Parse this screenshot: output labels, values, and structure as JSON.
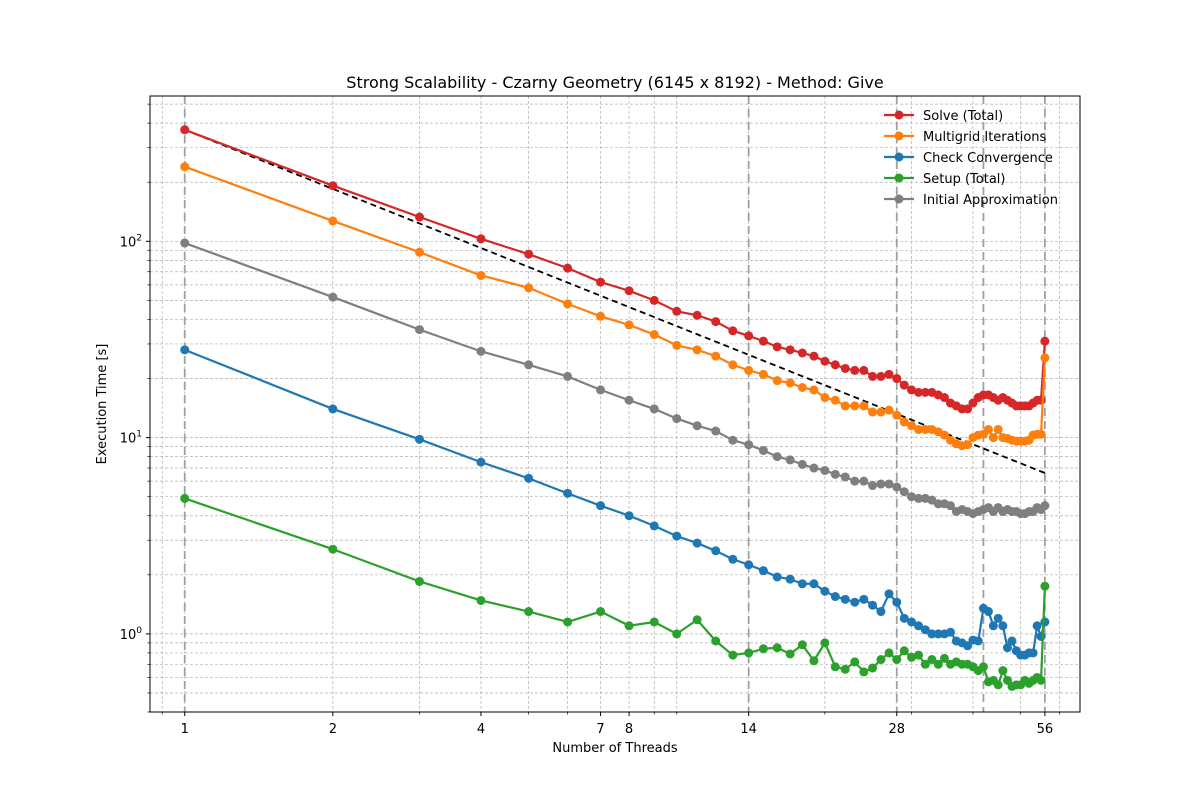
{
  "chart_data": {
    "type": "line",
    "title": "Strong Scalability - Czarny Geometry (6145 x 8192) - Method: Give",
    "xlabel": "Number of Threads",
    "ylabel": "Execution Time [s]",
    "x_scale": "log",
    "y_scale": "log",
    "xlim": [
      0.85,
      66
    ],
    "ylim": [
      0.4,
      550
    ],
    "x_ticks": [
      1,
      2,
      4,
      7,
      8,
      14,
      28,
      56
    ],
    "x_tick_labels": [
      "1",
      "2",
      "4",
      "7",
      "8",
      "14",
      "28",
      "56"
    ],
    "y_ticks": [
      1,
      10,
      100
    ],
    "y_tick_labels": [
      "10^0",
      "10^1",
      "10^2"
    ],
    "vertical_reference_lines": [
      1,
      14,
      28,
      42,
      56
    ],
    "grid": true,
    "legend_position": "top-right",
    "x": [
      1,
      2,
      3,
      4,
      5,
      6,
      7,
      8,
      9,
      10,
      11,
      12,
      13,
      14,
      15,
      16,
      17,
      18,
      19,
      20,
      21,
      22,
      23,
      24,
      25,
      26,
      27,
      28,
      29,
      30,
      31,
      32,
      33,
      34,
      35,
      36,
      37,
      38,
      39,
      40,
      41,
      42,
      43,
      44,
      45,
      46,
      47,
      48,
      49,
      50,
      51,
      52,
      53,
      54,
      55,
      56
    ],
    "series": [
      {
        "name": "Solve (Total)",
        "color": "#d62728",
        "values": [
          370,
          192,
          133,
          103,
          86,
          73,
          62,
          56,
          50,
          44,
          42,
          39,
          35,
          33,
          31,
          29,
          28,
          27,
          26,
          24.5,
          23.5,
          22.5,
          22,
          22,
          20.5,
          20.5,
          21,
          20,
          18.5,
          17.5,
          17,
          17,
          17,
          16.5,
          16,
          15,
          14.5,
          14,
          14,
          15,
          16,
          16.5,
          16.5,
          16,
          15.5,
          16,
          15.5,
          15,
          14.5,
          14.5,
          14.5,
          14.5,
          15,
          15.5,
          15.5,
          31
        ]
      },
      {
        "name": "Multigrid Iterations",
        "color": "#ff7f0e",
        "values": [
          240,
          127,
          88,
          67,
          58,
          48,
          41.5,
          37.5,
          33.5,
          29.5,
          28,
          26,
          23.5,
          22,
          21,
          19.5,
          19,
          18,
          17.5,
          16,
          15.5,
          14.5,
          14.5,
          14.5,
          13.5,
          13.5,
          13.8,
          13,
          12,
          11.5,
          11,
          11,
          11,
          10.7,
          10.3,
          9.7,
          9.3,
          9.1,
          9.2,
          10,
          10.3,
          10.4,
          11,
          10,
          11,
          10,
          9.9,
          9.7,
          9.6,
          9.6,
          9.6,
          9.7,
          10.3,
          10.4,
          10.4,
          25.5
        ]
      },
      {
        "name": "Check Convergence",
        "color": "#1f77b4",
        "values": [
          28,
          14,
          9.8,
          7.5,
          6.2,
          5.2,
          4.5,
          4.0,
          3.55,
          3.15,
          2.9,
          2.65,
          2.4,
          2.25,
          2.1,
          1.95,
          1.9,
          1.8,
          1.8,
          1.65,
          1.55,
          1.5,
          1.45,
          1.5,
          1.4,
          1.3,
          1.6,
          1.45,
          1.2,
          1.15,
          1.1,
          1.05,
          1.0,
          1.0,
          1.0,
          1.02,
          0.92,
          0.9,
          0.87,
          0.93,
          0.92,
          1.35,
          1.3,
          1.1,
          1.2,
          1.1,
          0.85,
          0.92,
          0.82,
          0.78,
          0.78,
          0.8,
          0.8,
          1.1,
          0.97,
          1.15
        ]
      },
      {
        "name": "Setup (Total)",
        "color": "#2ca02c",
        "values": [
          4.9,
          2.7,
          1.85,
          1.48,
          1.3,
          1.15,
          1.3,
          1.1,
          1.15,
          1.0,
          1.18,
          0.92,
          0.78,
          0.8,
          0.84,
          0.85,
          0.79,
          0.88,
          0.73,
          0.9,
          0.68,
          0.66,
          0.72,
          0.64,
          0.67,
          0.74,
          0.8,
          0.74,
          0.82,
          0.76,
          0.78,
          0.7,
          0.74,
          0.7,
          0.75,
          0.7,
          0.72,
          0.7,
          0.7,
          0.68,
          0.65,
          0.68,
          0.57,
          0.58,
          0.55,
          0.65,
          0.58,
          0.54,
          0.55,
          0.55,
          0.58,
          0.56,
          0.58,
          0.6,
          0.58,
          1.75
        ]
      },
      {
        "name": "Initial Approximation",
        "color": "#7f7f7f",
        "values": [
          98,
          52,
          35.5,
          27.5,
          23.5,
          20.5,
          17.5,
          15.5,
          14,
          12.5,
          11.5,
          10.8,
          9.7,
          9.2,
          8.6,
          8.0,
          7.7,
          7.3,
          7.0,
          6.8,
          6.5,
          6.3,
          6.0,
          6.0,
          5.7,
          5.8,
          5.8,
          5.6,
          5.3,
          5.0,
          4.9,
          4.9,
          4.8,
          4.6,
          4.6,
          4.5,
          4.2,
          4.3,
          4.2,
          4.1,
          4.2,
          4.3,
          4.4,
          4.2,
          4.4,
          4.2,
          4.3,
          4.2,
          4.2,
          4.1,
          4.1,
          4.2,
          4.2,
          4.4,
          4.3,
          4.5
        ]
      }
    ],
    "reference_line": {
      "style": "dashed",
      "color": "#000000",
      "x": [
        1,
        56
      ],
      "values": [
        370,
        6.6
      ]
    }
  }
}
